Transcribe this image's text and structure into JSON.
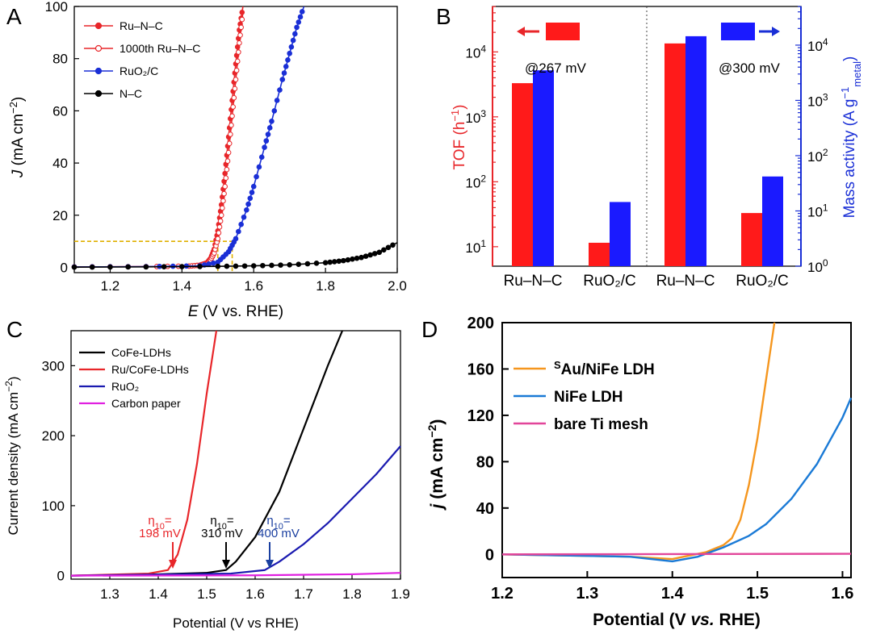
{
  "chart_data": [
    {
      "panel": "A",
      "type": "line",
      "xlabel_italic": "E",
      "xlabel_rest": " (V vs. RHE)",
      "ylabel_italic": "J",
      "ylabel_rest": " (mA cm",
      "ylabel_sup": "−2",
      "xlim": [
        1.1,
        2.0
      ],
      "ylim": [
        -2,
        100
      ],
      "xticks": [
        "1.2",
        "1.4",
        "1.6",
        "1.8",
        "2.0"
      ],
      "yticks": [
        "0",
        "20",
        "40",
        "60",
        "80",
        "100"
      ],
      "legend_position": "top-left",
      "grid": false,
      "legend": [
        "Ru–N–C",
        "1000th Ru–N–C",
        "RuO2/C",
        "N–C"
      ],
      "series": [
        {
          "name": "Ru–N–C",
          "color": "#e8262a",
          "marker": "filled",
          "x": [
            1.1,
            1.3,
            1.42,
            1.45,
            1.47,
            1.48,
            1.49,
            1.5,
            1.51,
            1.52,
            1.53,
            1.54,
            1.55,
            1.56,
            1.57
          ],
          "y": [
            0.2,
            0.3,
            0.5,
            0.9,
            1.8,
            3.5,
            7,
            14,
            24,
            36,
            50,
            64,
            78,
            91,
            100
          ]
        },
        {
          "name": "1000th Ru–N–C",
          "color": "#e8262a",
          "marker": "open",
          "x": [
            1.1,
            1.3,
            1.42,
            1.45,
            1.47,
            1.48,
            1.49,
            1.5,
            1.51,
            1.52,
            1.53,
            1.54,
            1.55,
            1.56,
            1.57
          ],
          "y": [
            0.2,
            0.3,
            0.5,
            0.8,
            1.5,
            2.8,
            5.5,
            11,
            20,
            31,
            44,
            58,
            72,
            86,
            98
          ]
        },
        {
          "name": "RuO2/C",
          "color": "#1a2fd6",
          "marker": "filled",
          "x": [
            1.1,
            1.3,
            1.45,
            1.5,
            1.53,
            1.55,
            1.58,
            1.6,
            1.63,
            1.65,
            1.68,
            1.7,
            1.72,
            1.74
          ],
          "y": [
            0.2,
            0.3,
            0.6,
            2,
            6,
            11,
            22,
            31,
            46,
            56,
            72,
            82,
            92,
            100
          ]
        },
        {
          "name": "N–C",
          "color": "#000000",
          "marker": "filled",
          "x": [
            1.1,
            1.3,
            1.5,
            1.6,
            1.7,
            1.8,
            1.85,
            1.9,
            1.95,
            2.0
          ],
          "y": [
            0.1,
            0.2,
            0.4,
            0.6,
            1.0,
            1.8,
            2.6,
            3.8,
            5.8,
            9.5
          ]
        }
      ],
      "guide_lines": {
        "color": "#e0b000",
        "y": 10,
        "x1": 1.5,
        "x2": 1.54
      }
    },
    {
      "panel": "B",
      "type": "bar",
      "log_scale": true,
      "left_axis_label": "TOF (h",
      "left_axis_sup": "−1",
      "left_axis_close": ")",
      "left_axis_color": "#e8262a",
      "right_axis_label": "Mass activity (A g",
      "right_axis_sup": "−1",
      "right_axis_sub": "metal",
      "right_axis_close": ")",
      "right_axis_color": "#1a2fd6",
      "left_ylim_log": [
        0.7,
        4.7
      ],
      "right_ylim_log": [
        0,
        4.7
      ],
      "left_ticks": [
        {
          "base": "10",
          "exp": "1"
        },
        {
          "base": "10",
          "exp": "2"
        },
        {
          "base": "10",
          "exp": "3"
        },
        {
          "base": "10",
          "exp": "4"
        }
      ],
      "right_ticks": [
        {
          "base": "10",
          "exp": "0"
        },
        {
          "base": "10",
          "exp": "1"
        },
        {
          "base": "10",
          "exp": "2"
        },
        {
          "base": "10",
          "exp": "3"
        },
        {
          "base": "10",
          "exp": "4"
        }
      ],
      "categories": [
        "Ru–N–C",
        "RuO2/C",
        "Ru–N–C",
        "RuO2/C"
      ],
      "groups": [
        "@267 mV",
        "@300 mV"
      ],
      "series": [
        {
          "name": "TOF",
          "color": "#ff1a1a",
          "axis": "left",
          "values": [
            3300,
            11.5,
            13500,
            33
          ]
        },
        {
          "name": "Mass activity",
          "color": "#1a1aff",
          "axis": "right",
          "values": [
            3500,
            14.5,
            14500,
            42
          ]
        }
      ]
    },
    {
      "panel": "C",
      "type": "line",
      "xlabel": "Potential (V vs RHE)",
      "ylabel": "Current density (mA cm",
      "ylabel_sup": "−2",
      "ylabel_close": ")",
      "xlim": [
        1.22,
        1.9
      ],
      "ylim": [
        -5,
        350
      ],
      "xticks": [
        "1.3",
        "1.4",
        "1.5",
        "1.6",
        "1.7",
        "1.8",
        "1.9"
      ],
      "yticks": [
        "0",
        "100",
        "200",
        "300"
      ],
      "legend_position": "top-left",
      "grid": false,
      "legend": [
        "CoFe-LDHs",
        "Ru/CoFe-LDHs",
        "RuO2",
        "Carbon paper"
      ],
      "series": [
        {
          "name": "CoFe-LDHs",
          "color": "#000000",
          "x": [
            1.22,
            1.4,
            1.5,
            1.54,
            1.56,
            1.6,
            1.65,
            1.7,
            1.75,
            1.78
          ],
          "y": [
            0,
            2,
            4,
            8,
            20,
            55,
            120,
            210,
            300,
            350
          ]
        },
        {
          "name": "Ru/CoFe-LDHs",
          "color": "#e8262a",
          "x": [
            1.22,
            1.38,
            1.42,
            1.44,
            1.46,
            1.48,
            1.5,
            1.52
          ],
          "y": [
            0,
            3,
            8,
            30,
            80,
            160,
            260,
            350
          ]
        },
        {
          "name": "RuO2",
          "color": "#1a1ab0",
          "x": [
            1.22,
            1.55,
            1.62,
            1.65,
            1.7,
            1.75,
            1.8,
            1.85,
            1.9
          ],
          "y": [
            0,
            3,
            8,
            20,
            45,
            75,
            110,
            145,
            185
          ]
        },
        {
          "name": "Carbon paper",
          "color": "#e020e0",
          "x": [
            1.22,
            1.6,
            1.8,
            1.9
          ],
          "y": [
            0,
            0.5,
            2,
            4
          ]
        }
      ],
      "annotations": [
        {
          "line1": "η",
          "sub": "10",
          "eq": "=",
          "line2": "198 mV",
          "color": "#e8262a",
          "x": 1.43
        },
        {
          "line1": "η",
          "sub": "10",
          "eq": "=",
          "line2": "310 mV",
          "color": "#000000",
          "x": 1.54
        },
        {
          "line1": "η",
          "sub": "10",
          "eq": "=",
          "line2": "400 mV",
          "color": "#1a3fa0",
          "x": 1.63
        }
      ]
    },
    {
      "panel": "D",
      "type": "line",
      "xlabel_pre": "Potential (V ",
      "xlabel_italic": "vs.",
      "xlabel_post": " RHE)",
      "ylabel_italic": "j",
      "ylabel_rest": " (mA cm",
      "ylabel_sup": "−2",
      "ylabel_close": ")",
      "xlim": [
        1.2,
        1.61
      ],
      "ylim": [
        -20,
        200
      ],
      "xticks": [
        "1.2",
        "1.3",
        "1.4",
        "1.5",
        "1.6"
      ],
      "yticks": [
        "0",
        "40",
        "80",
        "120",
        "160",
        "200"
      ],
      "legend_position": "top-left",
      "grid": false,
      "legend_sup": "S",
      "legend": [
        "Au/NiFe LDH",
        "NiFe LDH",
        "bare Ti mesh"
      ],
      "series": [
        {
          "name": "Au/NiFe LDH",
          "color": "#f5961e",
          "x": [
            1.2,
            1.35,
            1.4,
            1.44,
            1.46,
            1.47,
            1.48,
            1.49,
            1.5,
            1.51,
            1.52
          ],
          "y": [
            0,
            -2,
            -4,
            2,
            8,
            14,
            30,
            60,
            100,
            150,
            200
          ]
        },
        {
          "name": "NiFe LDH",
          "color": "#1a7ad6",
          "x": [
            1.2,
            1.35,
            1.4,
            1.43,
            1.46,
            1.49,
            1.51,
            1.54,
            1.57,
            1.6,
            1.61
          ],
          "y": [
            0,
            -2,
            -6,
            -2,
            6,
            16,
            26,
            48,
            78,
            118,
            135
          ]
        },
        {
          "name": "bare Ti mesh",
          "color": "#e2469a",
          "x": [
            1.2,
            1.61
          ],
          "y": [
            0,
            0.5
          ]
        }
      ]
    }
  ]
}
